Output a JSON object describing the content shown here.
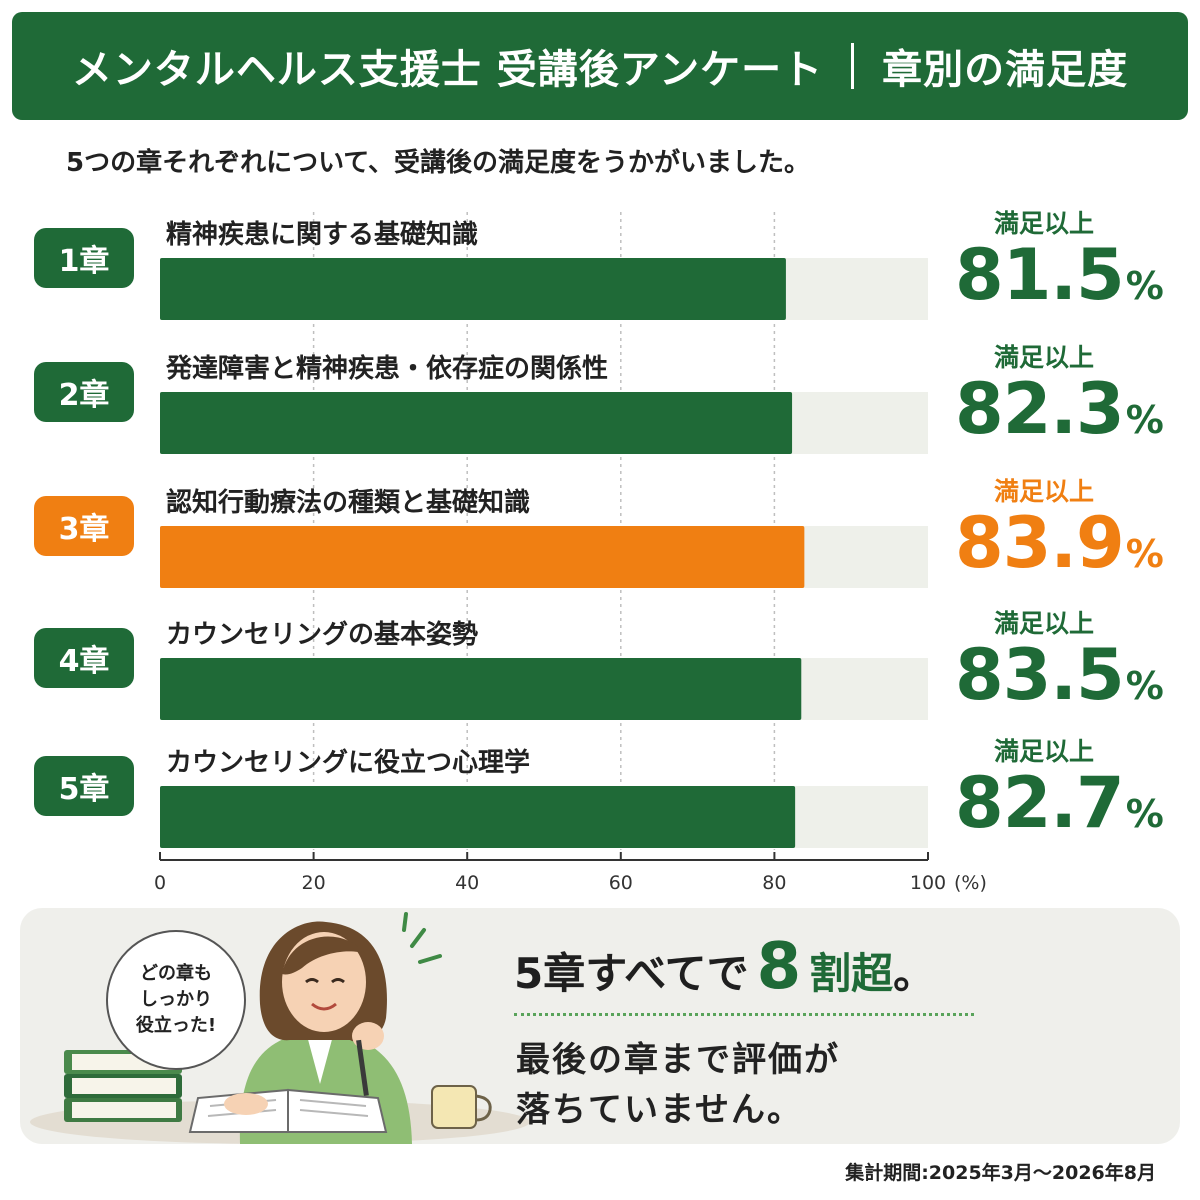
{
  "header": {
    "title_main": "メンタルヘルス支援士 受講後アンケート",
    "title_sub": "章別の満足度"
  },
  "subtitle": "5つの章それぞれについて、受講後の満足度をうかがいました。",
  "chart_data": {
    "type": "bar",
    "orientation": "horizontal",
    "categories": [
      "精神疾患に関する基礎知識",
      "発達障害と精神疾患・依存症の関係性",
      "認知行動療法の種類と基礎知識",
      "カウンセリングの基本姿勢",
      "カウンセリングに役立つ心理学"
    ],
    "chapters": [
      "1章",
      "2章",
      "3章",
      "4章",
      "5章"
    ],
    "values": [
      81.5,
      82.3,
      83.9,
      83.5,
      82.7
    ],
    "value_caption": "満足以上",
    "unit": "%",
    "highlight_index": 2,
    "x_ticks": [
      "0",
      "20",
      "40",
      "60",
      "80",
      "100"
    ],
    "x_unit_label": "(%)",
    "xlim": [
      0,
      100
    ],
    "grid": "vertical dotted",
    "colors": {
      "bar": "#1f6a37",
      "highlight": "#f07f12",
      "track": "#eef0ea"
    }
  },
  "callout": {
    "bubble_lines": [
      "どの章も",
      "しっかり",
      "役立った!"
    ],
    "headline_pre": "5章すべてで",
    "headline_number": "8",
    "headline_unit": "割超",
    "headline_end": "。",
    "body_lines": [
      "最後の章まで評価が",
      "落ちていません。"
    ]
  },
  "period": "集計期間:2025年3月〜2026年8月"
}
